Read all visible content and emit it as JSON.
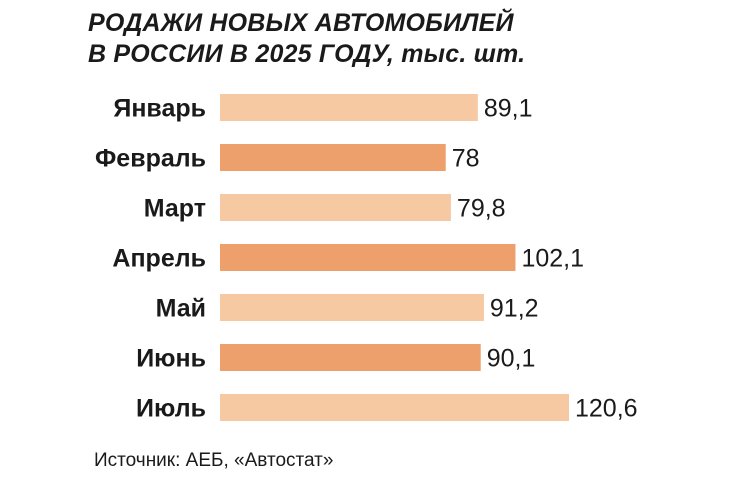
{
  "chart_data": {
    "type": "bar",
    "orientation": "horizontal",
    "title": "РОДАЖИ НОВЫХ АВТОМОБИЛЕЙ\nВ РОССИИ В 2025 ГОДУ,",
    "title_line1": "РОДАЖИ НОВЫХ АВТОМОБИЛЕЙ",
    "title_line2": "В РОССИИ В 2025 ГОДУ,",
    "unit": "тыс. шт.",
    "categories": [
      "Январь",
      "Февраль",
      "Март",
      "Апрель",
      "Май",
      "Июнь",
      "Июль"
    ],
    "values": [
      89.1,
      78,
      79.8,
      102.1,
      91.2,
      90.1,
      120.6
    ],
    "value_labels": [
      "89,1",
      "78",
      "79,8",
      "102,1",
      "91,2",
      "90,1",
      "120,6"
    ],
    "highlighted": [
      false,
      true,
      false,
      true,
      false,
      true,
      false
    ],
    "xlim": [
      0,
      120.6
    ],
    "grid": false,
    "source": "Источник: АЕБ, «Автостат»"
  },
  "colors": {
    "bar_light": "#f7c9a3",
    "bar_dark": "#eea06c",
    "text": "#1a1a1a"
  }
}
